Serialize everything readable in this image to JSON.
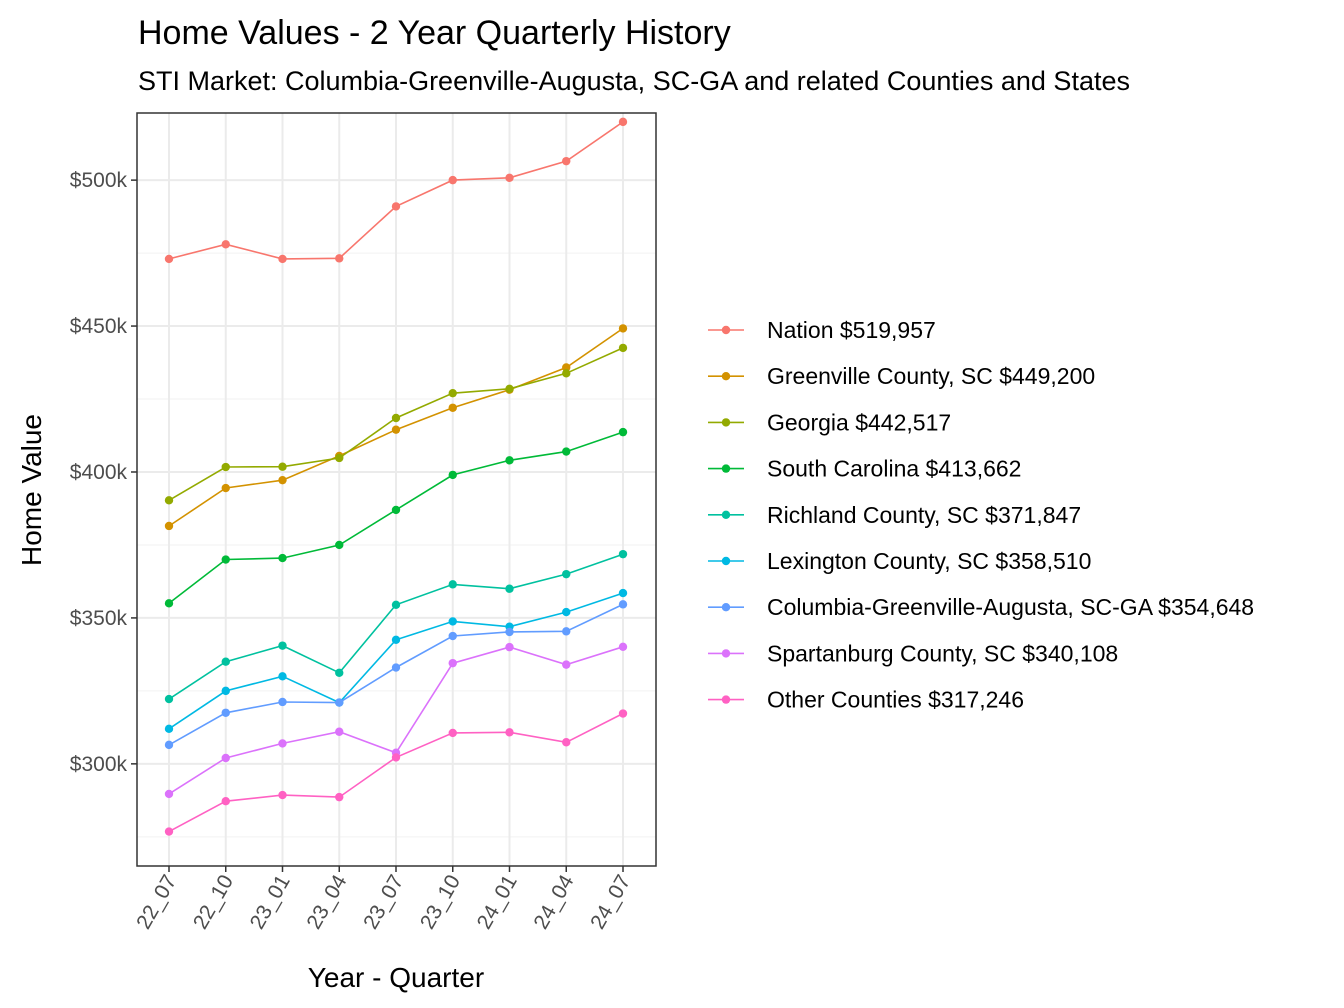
{
  "chart_data": {
    "type": "line",
    "title": "Home Values - 2 Year Quarterly History",
    "subtitle": "STI Market: Columbia-Greenville-Augusta, SC-GA and related Counties and States",
    "xlabel": "Year - Quarter",
    "ylabel": "Home Value",
    "categories": [
      "22_07",
      "22_10",
      "23_01",
      "23_04",
      "23_07",
      "23_10",
      "24_01",
      "24_04",
      "24_07"
    ],
    "ylim": [
      265000,
      523000
    ],
    "yticks": [
      300000,
      350000,
      400000,
      450000,
      500000
    ],
    "ytick_labels": [
      "$300k",
      "$350k",
      "$400k",
      "$450k",
      "$500k"
    ],
    "grid": true,
    "legend_position": "right",
    "series": [
      {
        "name": "Nation",
        "legend_label": "Nation $519,957",
        "color": "#F8766D",
        "values": [
          473000,
          478000,
          473000,
          473200,
          491000,
          500000,
          500800,
          506500,
          519957
        ]
      },
      {
        "name": "Greenville County, SC",
        "legend_label": "Greenville County, SC $449,200",
        "color": "#D39200",
        "values": [
          381500,
          394500,
          397200,
          405500,
          414500,
          422000,
          428200,
          435800,
          449200
        ]
      },
      {
        "name": "Georgia",
        "legend_label": "Georgia $442,517",
        "color": "#93AA00",
        "values": [
          390300,
          401700,
          401800,
          404800,
          418500,
          427000,
          428500,
          433800,
          442517
        ]
      },
      {
        "name": "South Carolina",
        "legend_label": "South Carolina $413,662",
        "color": "#00BA38",
        "values": [
          355000,
          370000,
          370500,
          375000,
          387000,
          399000,
          404000,
          407000,
          413662
        ]
      },
      {
        "name": "Richland County, SC",
        "legend_label": "Richland County, SC $371,847",
        "color": "#00C19F",
        "values": [
          322200,
          335000,
          340500,
          331200,
          354500,
          361500,
          360000,
          365000,
          371847
        ]
      },
      {
        "name": "Lexington County, SC",
        "legend_label": "Lexington County, SC $358,510",
        "color": "#00B9E3",
        "values": [
          312000,
          325000,
          330000,
          321000,
          342500,
          348800,
          347000,
          352000,
          358510
        ]
      },
      {
        "name": "Columbia-Greenville-Augusta, SC-GA",
        "legend_label": "Columbia-Greenville-Augusta, SC-GA $354,648",
        "color": "#619CFF",
        "values": [
          306500,
          317500,
          321200,
          321000,
          333000,
          343800,
          345200,
          345400,
          354648
        ]
      },
      {
        "name": "Spartanburg County, SC",
        "legend_label": "Spartanburg County, SC $340,108",
        "color": "#DB72FB",
        "values": [
          289700,
          302000,
          307000,
          311000,
          303800,
          334500,
          340000,
          334000,
          340108
        ]
      },
      {
        "name": "Other Counties",
        "legend_label": "Other Counties $317,246",
        "color": "#FF61C3",
        "values": [
          276800,
          287200,
          289300,
          288600,
          302200,
          310600,
          310800,
          307400,
          317246
        ]
      }
    ]
  }
}
